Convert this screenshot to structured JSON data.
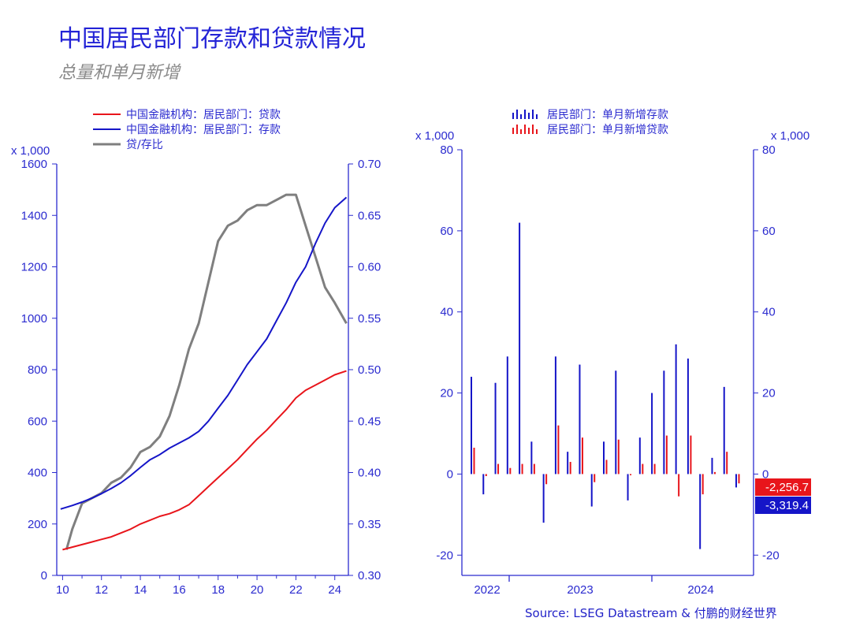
{
  "title": "中国居民部门存款和贷款情况",
  "subtitle": "总量和单月新增",
  "source": "Source: LSEG Datastream & 付鹏的财经世界",
  "colors": {
    "loan": "#e8151b",
    "deposit": "#1515c8",
    "ratio": "#7f7f7f",
    "axis": "#2b2bcf"
  },
  "chart_data": [
    {
      "type": "line",
      "legend_position": "top",
      "left_unit": "x 1,000",
      "left_axis": {
        "ylim": [
          0,
          1600
        ],
        "ticks": [
          0,
          200,
          400,
          600,
          800,
          1000,
          1200,
          1400,
          1600
        ]
      },
      "right_axis": {
        "ylim": [
          0.3,
          0.7
        ],
        "ticks": [
          "0.30",
          "0.35",
          "0.40",
          "0.45",
          "0.50",
          "0.55",
          "0.60",
          "0.65",
          "0.70"
        ]
      },
      "x_axis": {
        "xlim": [
          9.7,
          24.7
        ],
        "ticks": [
          "10",
          "12",
          "14",
          "16",
          "18",
          "20",
          "22",
          "24"
        ]
      },
      "series": [
        {
          "name": "中国金融机构：居民部门：贷款",
          "axis": "left",
          "color": "#e8151b",
          "x": [
            10,
            10.5,
            11,
            11.5,
            12,
            12.5,
            13,
            13.5,
            14,
            14.5,
            15,
            15.5,
            16,
            16.5,
            17,
            17.5,
            18,
            18.5,
            19,
            19.5,
            20,
            20.5,
            21,
            21.5,
            22,
            22.5,
            23,
            23.5,
            24,
            24.6
          ],
          "y": [
            100,
            110,
            120,
            130,
            140,
            150,
            165,
            180,
            200,
            215,
            230,
            240,
            255,
            275,
            310,
            345,
            380,
            415,
            450,
            490,
            530,
            565,
            605,
            645,
            690,
            720,
            740,
            760,
            780,
            795
          ]
        },
        {
          "name": "中国金融机构：居民部门：存款",
          "axis": "left",
          "color": "#1515c8",
          "x": [
            9.9,
            10.5,
            11,
            11.5,
            12,
            12.5,
            13,
            13.5,
            14,
            14.5,
            15,
            15.5,
            16,
            16.5,
            17,
            17.5,
            18,
            18.5,
            19,
            19.5,
            20,
            20.5,
            21,
            21.5,
            22,
            22.5,
            23,
            23.5,
            24,
            24.6
          ],
          "y": [
            258,
            272,
            285,
            300,
            318,
            338,
            360,
            388,
            420,
            450,
            470,
            495,
            515,
            535,
            560,
            600,
            650,
            700,
            760,
            820,
            870,
            920,
            990,
            1060,
            1140,
            1200,
            1290,
            1370,
            1430,
            1470
          ]
        },
        {
          "name": "贷/存比",
          "axis": "right",
          "color": "#7f7f7f",
          "x": [
            10.2,
            10.5,
            11,
            11.5,
            12,
            12.5,
            13,
            13.5,
            14,
            14.5,
            15,
            15.5,
            16,
            16.5,
            17,
            17.5,
            18,
            18.5,
            19,
            19.5,
            20,
            20.5,
            21,
            21.5,
            22,
            22.5,
            23,
            23.5,
            24,
            24.6
          ],
          "y": [
            0.325,
            0.345,
            0.37,
            0.375,
            0.38,
            0.39,
            0.395,
            0.405,
            0.42,
            0.425,
            0.435,
            0.455,
            0.485,
            0.52,
            0.545,
            0.585,
            0.625,
            0.64,
            0.645,
            0.655,
            0.66,
            0.66,
            0.665,
            0.67,
            0.67,
            0.64,
            0.61,
            0.58,
            0.565,
            0.545
          ]
        }
      ]
    },
    {
      "type": "bar",
      "legend_position": "top",
      "left_unit": "x 1,000",
      "right_unit": "x 1,000",
      "y_axis": {
        "ylim": [
          -25,
          80
        ],
        "ticks": [
          "-20",
          "0",
          "20",
          "40",
          "60",
          "80"
        ]
      },
      "x_axis": {
        "tick_labels": [
          "2022",
          "2023",
          "2024"
        ]
      },
      "series": [
        {
          "name": "居民部门：单月新增存款",
          "color": "#1515c8",
          "values": [
            24,
            -5,
            22.5,
            29,
            62,
            8,
            -12,
            29,
            5.5,
            27,
            -8,
            8,
            25.5,
            -6.5,
            9,
            20,
            25.5,
            32,
            28.5,
            -18.5,
            4,
            21.5,
            -3.3
          ]
        },
        {
          "name": "居民部门：单月新增贷款",
          "color": "#e8151b",
          "values": [
            6.5,
            -0.5,
            2.5,
            1.5,
            2.5,
            2.5,
            -2.5,
            12,
            3,
            9,
            -2,
            3.5,
            8.5,
            -0.3,
            2.5,
            2.5,
            9.5,
            -5.5,
            9.5,
            -5,
            0.5,
            5.5,
            -2.3
          ]
        }
      ],
      "last_values": {
        "loan": "-2,256.7",
        "deposit": "-3,319.4"
      }
    }
  ]
}
